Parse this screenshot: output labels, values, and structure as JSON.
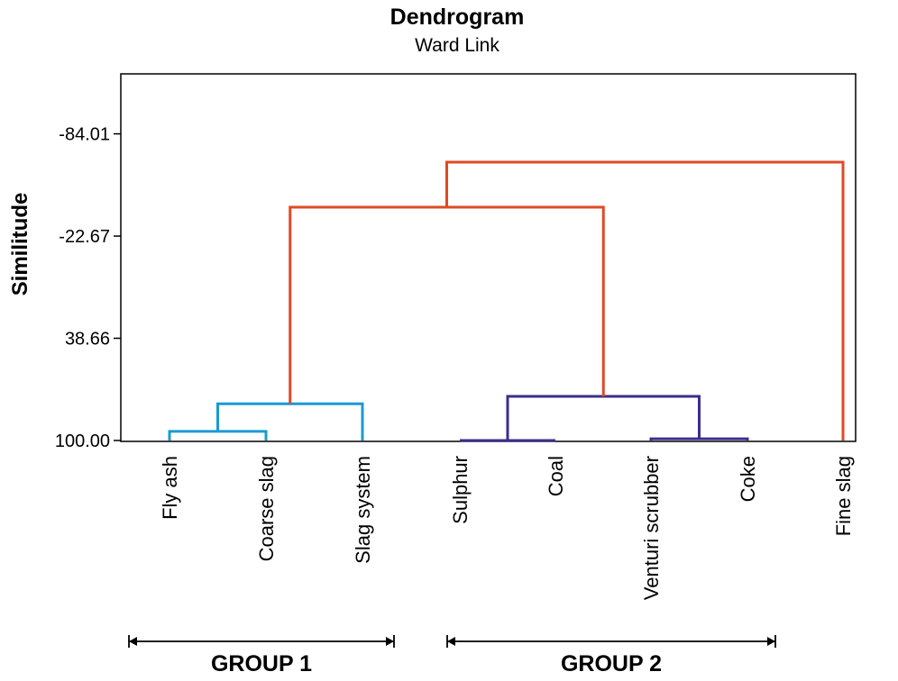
{
  "chart_data": {
    "type": "dendrogram",
    "title": "Dendrogram",
    "subtitle": "Ward Link",
    "ylabel": "Similitude",
    "yticks": [
      "-84.01",
      "-22.67",
      "38.66",
      "100.00"
    ],
    "ylim": [
      100,
      -120
    ],
    "leaves": [
      "Fly ash",
      "Coarse slag",
      "Slag system",
      "Sulphur",
      "Coal",
      "Venturi scrubber",
      "Coke",
      "Fine slag"
    ],
    "merges": [
      {
        "left": "Fly ash",
        "right": "Coarse slag",
        "similitude": 94.5,
        "color": "#1a9ad6"
      },
      {
        "left": "Fly ash + Coarse slag",
        "right": "Slag system",
        "similitude": 78.0,
        "color": "#1a9ad6"
      },
      {
        "left": "Sulphur",
        "right": "Coal",
        "similitude": 100.0,
        "color": "#3b2e8c"
      },
      {
        "left": "Venturi scrubber",
        "right": "Coke",
        "similitude": 99.0,
        "color": "#3b2e8c"
      },
      {
        "left": "Sulphur + Coal",
        "right": "Venturi scrubber + Coke",
        "similitude": 73.5,
        "color": "#3b2e8c"
      },
      {
        "left": "Group 1",
        "right": "Group 2",
        "similitude": -40.0,
        "color": "#e04a24"
      },
      {
        "left": "Group 1 + Group 2",
        "right": "Fine slag",
        "similitude": -67.0,
        "color": "#e04a24"
      }
    ],
    "groups": [
      {
        "label": "GROUP 1",
        "members": [
          "Fly ash",
          "Coarse slag",
          "Slag system"
        ]
      },
      {
        "label": "GROUP 2",
        "members": [
          "Sulphur",
          "Coal",
          "Venturi scrubber",
          "Coke"
        ]
      }
    ]
  }
}
